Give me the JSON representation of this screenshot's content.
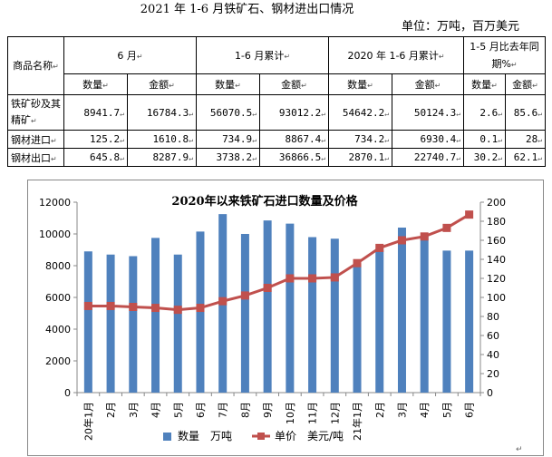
{
  "document": {
    "title": "2021 年 1-6 月铁矿石、钢材进出口情况",
    "unit": "单位：万吨，百万美元",
    "paragraph_mark": "↵",
    "colors": {
      "bar": "#4F81BD",
      "line": "#C0504D",
      "text": "#000000",
      "border": "#000000"
    }
  },
  "table": {
    "header_top": [
      "商品名称",
      "6 月",
      "1-6 月累计",
      "2020 年 1-6 月累计",
      "1-5 月比去年同期%"
    ],
    "header_sub": [
      "数量",
      "金额",
      "数量",
      "金额",
      "数量",
      "金额",
      "数量",
      "金额"
    ],
    "rows": [
      {
        "label": "铁矿砂及其精矿",
        "values": [
          "8941.7",
          "16784.3",
          "56070.5",
          "93012.2",
          "54642.2",
          "50124.3",
          "2.6",
          "85.6"
        ]
      },
      {
        "label": "钢材进口",
        "values": [
          "125.2",
          "1610.8",
          "734.9",
          "8867.4",
          "734.2",
          "6930.4",
          "0.1",
          "28"
        ]
      },
      {
        "label": "钢材出口",
        "values": [
          "645.8",
          "8287.9",
          "3738.2",
          "36866.5",
          "2870.1",
          "22740.7",
          "30.2",
          "62.1"
        ]
      }
    ]
  },
  "chart_data": {
    "type": "bar",
    "title": "2020年以来铁矿石进口数量及价格",
    "categories": [
      "20年1月",
      "2月",
      "3月",
      "4月",
      "5月",
      "6月",
      "7月",
      "8月",
      "9月",
      "10月",
      "11月",
      "12月",
      "21年1月",
      "2月",
      "3月",
      "4月",
      "5月",
      "6月"
    ],
    "series": [
      {
        "name": "数量",
        "unit": "万吨",
        "type": "bar",
        "axis": "left",
        "values": [
          8900,
          8700,
          8600,
          9750,
          8700,
          10150,
          11250,
          10000,
          10850,
          10650,
          9800,
          9700,
          8100,
          9000,
          10400,
          9850,
          8950,
          8950
        ]
      },
      {
        "name": "单价",
        "unit": "美元/吨",
        "type": "line",
        "axis": "right",
        "values": [
          91,
          91,
          90,
          89,
          87,
          89,
          96,
          102,
          110,
          120,
          120,
          121,
          136,
          152,
          160,
          164,
          173,
          187
        ]
      }
    ],
    "y_left": {
      "min": 0,
      "max": 12000,
      "ticks": [
        0,
        2000,
        4000,
        6000,
        8000,
        10000,
        12000
      ]
    },
    "y_right": {
      "min": 0,
      "max": 200,
      "ticks": [
        0,
        20,
        40,
        60,
        80,
        100,
        120,
        140,
        160,
        180,
        200
      ]
    },
    "legend": {
      "position": "bottom",
      "items": [
        "数量　万吨",
        "单价　美元/吨"
      ]
    }
  }
}
